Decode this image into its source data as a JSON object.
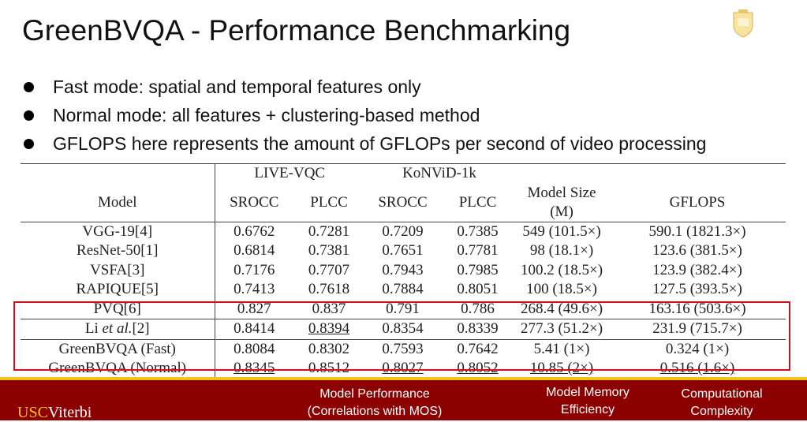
{
  "title": "GreenBVQA - Performance Benchmarking",
  "bullets": [
    "Fast mode: spatial and temporal features only",
    "Normal mode: all features + clustering-based method",
    "GFLOPS here represents the amount of GFLOPs per second of video processing"
  ],
  "table": {
    "group_headers": [
      "LIVE-VQC",
      "KoNViD-1k"
    ],
    "headers": [
      "Model",
      "SROCC",
      "PLCC",
      "SROCC",
      "PLCC",
      "Model Size (M)",
      "GFLOPS"
    ],
    "rows": [
      [
        "VGG-19[4]",
        "0.6762",
        "0.7281",
        "0.7209",
        "0.7385",
        "549 (101.5×)",
        "590.1 (1821.3×)"
      ],
      [
        "ResNet-50[1]",
        "0.6814",
        "0.7381",
        "0.7651",
        "0.7781",
        "98 (18.1×)",
        "123.6 (381.5×)"
      ],
      [
        "VSFA[3]",
        "0.7176",
        "0.7707",
        "0.7943",
        "0.7985",
        "100.2 (18.5×)",
        "123.9 (382.4×)"
      ],
      [
        "RAPIQUE[5]",
        "0.7413",
        "0.7618",
        "0.7884",
        "0.8051",
        "100 (18.5×)",
        "127.5 (393.5×)"
      ],
      [
        "PVQ[6]",
        "0.827",
        "0.837",
        "0.791",
        "0.786",
        "268.4 (49.6×)",
        "163.16 (503.6×)"
      ],
      [
        "Li et al.[2]",
        "0.8414",
        "0.8394",
        "0.8354",
        "0.8339",
        "277.3 (51.2×)",
        "231.9 (715.7×)"
      ],
      [
        "GreenBVQA (Fast)",
        "0.8084",
        "0.8302",
        "0.7593",
        "0.7642",
        "5.41 (1×)",
        "0.324 (1×)"
      ],
      [
        "GreenBVQA (Normal)",
        "0.8345",
        "0.8512",
        "0.8027",
        "0.8052",
        "10.85 (2×)",
        "0.516 (1.6×)"
      ]
    ],
    "li_parts": {
      "pre": "Li ",
      "ital": "et al.",
      "post": "[2]"
    },
    "highlight_color": "#d0101a"
  },
  "footer": {
    "logo": "USCViterbi",
    "logo_a": "USC",
    "logo_b": "Viterbi",
    "labels": [
      "Model Performance",
      "(Correlations with MOS)",
      "Model Memory",
      "Efficiency",
      "Computational",
      "Complexity"
    ],
    "bg": "#8c0000",
    "accent": "#f0c419"
  }
}
